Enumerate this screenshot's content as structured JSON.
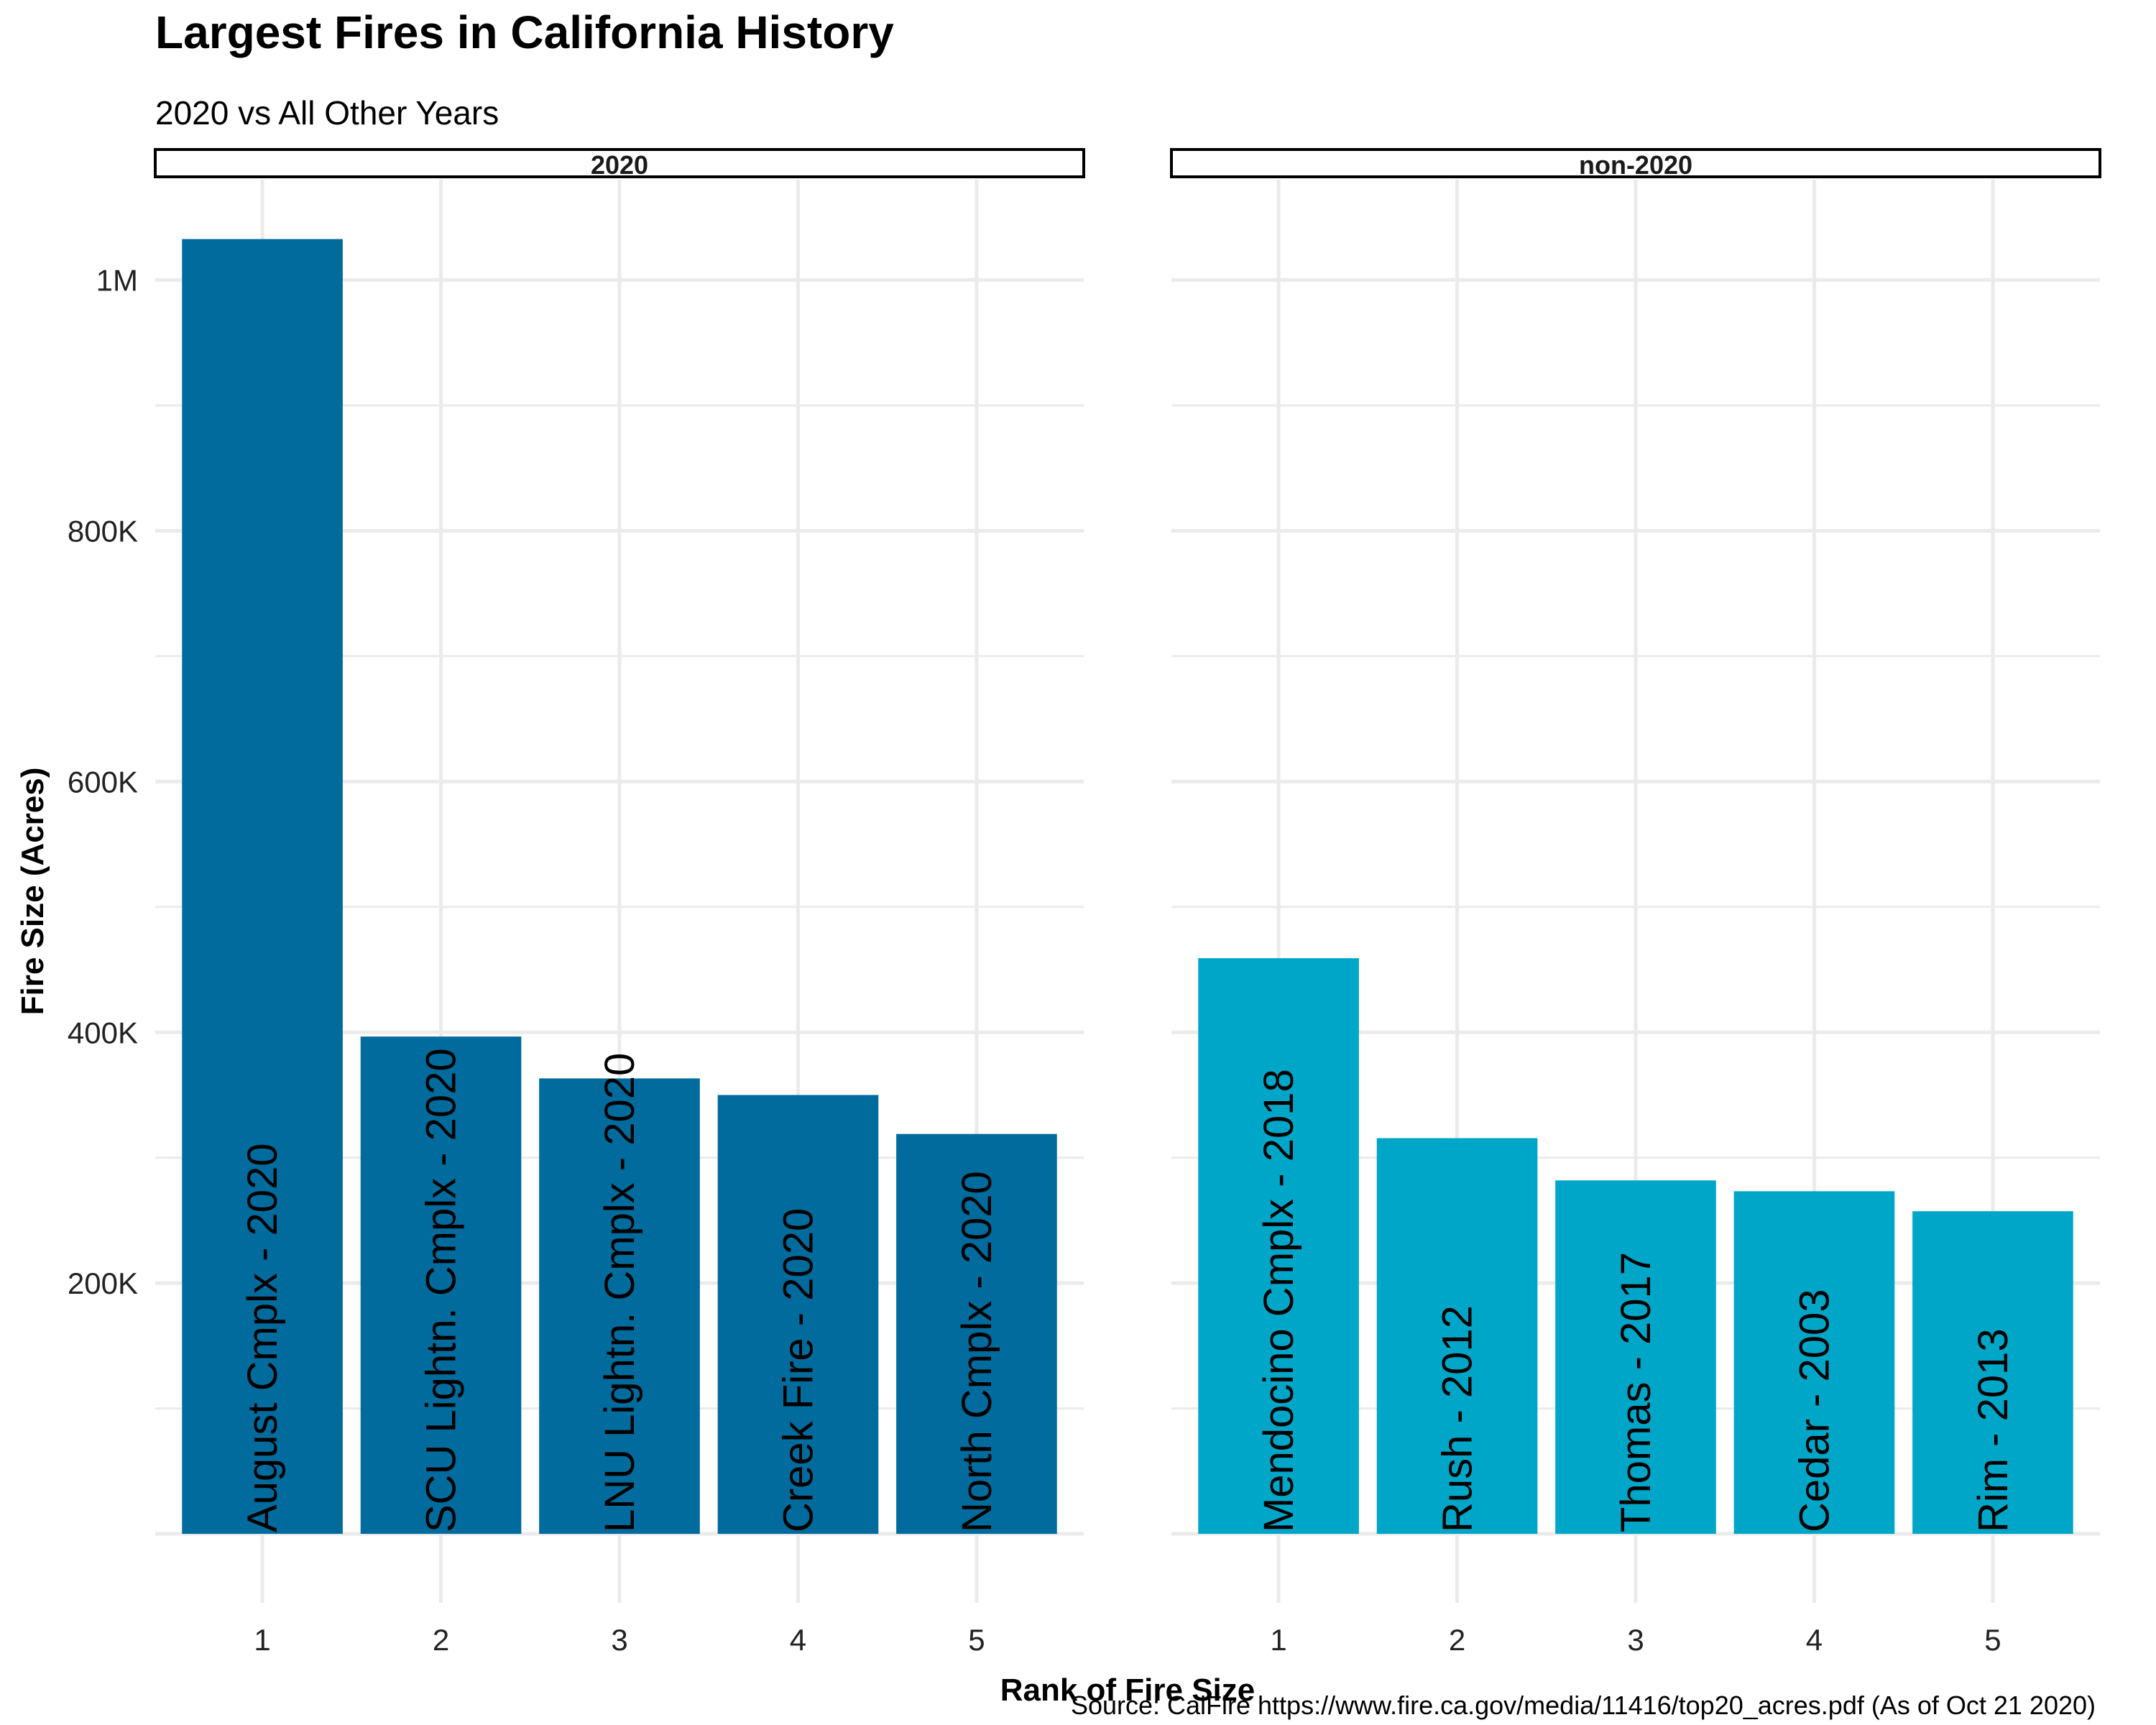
{
  "chart_data": {
    "type": "bar",
    "title": "Largest Fires in California History",
    "subtitle": "2020 vs All Other Years",
    "xlabel": "Rank of Fire Size",
    "ylabel": "Fire Size (Acres)",
    "caption": "Source: CalFire https://www.fire.ca.gov/media/11416/top20_acres.pdf (As of Oct 21 2020)",
    "ylim": [
      -55000,
      1080000
    ],
    "y_ticks": [
      {
        "value": 200000,
        "label": "200K"
      },
      {
        "value": 400000,
        "label": "400K"
      },
      {
        "value": 600000,
        "label": "600K"
      },
      {
        "value": 800000,
        "label": "800K"
      },
      {
        "value": 1000000,
        "label": "1M"
      }
    ],
    "categories": [
      "1",
      "2",
      "3",
      "4",
      "5"
    ],
    "grid": true,
    "facets": [
      {
        "name": "2020",
        "color": "#006b9c",
        "bars": [
          {
            "rank": "1",
            "value": 1032648,
            "label": "August Cmplx - 2020"
          },
          {
            "rank": "2",
            "value": 396624,
            "label": "SCU Lightn. Cmplx - 2020"
          },
          {
            "rank": "3",
            "value": 363220,
            "label": "LNU Lightn. Cmplx - 2020"
          },
          {
            "rank": "4",
            "value": 350000,
            "label": "Creek Fire - 2020"
          },
          {
            "rank": "5",
            "value": 318930,
            "label": "North Cmplx - 2020"
          }
        ]
      },
      {
        "name": "non-2020",
        "color": "#00a6c8",
        "bars": [
          {
            "rank": "1",
            "value": 459123,
            "label": "Mendocino Cmplx - 2018"
          },
          {
            "rank": "2",
            "value": 315577,
            "label": "Rush - 2012"
          },
          {
            "rank": "3",
            "value": 281893,
            "label": "Thomas - 2017"
          },
          {
            "rank": "4",
            "value": 273246,
            "label": "Cedar - 2003"
          },
          {
            "rank": "5",
            "value": 257314,
            "label": "Rim - 2013"
          }
        ]
      }
    ]
  }
}
